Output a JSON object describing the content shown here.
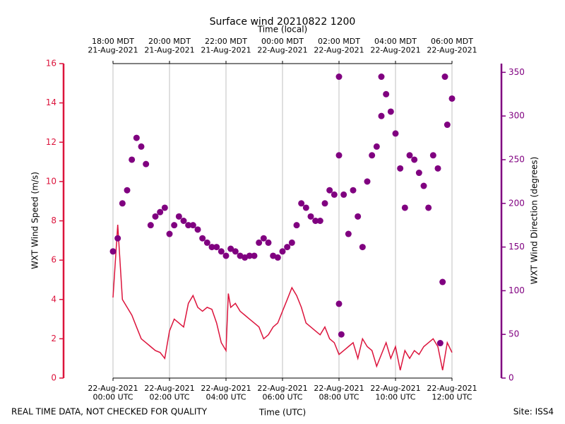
{
  "chart_data": {
    "type": "line",
    "title": "Surface wind 20210822 1200",
    "xlabel": "Time (UTC)",
    "x2label": "Time (local)",
    "ylabel": "WXT Wind Speed (m/s)",
    "y2label": "WXT Wind Direction (degrees)",
    "footer_left": "REAL TIME DATA, NOT CHECKED FOR QUALITY",
    "footer_right": "Site: ISS4",
    "grid": true,
    "xlim": [
      "2021-08-22 00:00",
      "2021-08-22 12:00"
    ],
    "xticks": [
      {
        "value": "2021-08-22 00:00",
        "label": "22-Aug-2021\n00:00 UTC"
      },
      {
        "value": "2021-08-22 02:00",
        "label": "22-Aug-2021\n02:00 UTC"
      },
      {
        "value": "2021-08-22 04:00",
        "label": "22-Aug-2021\n04:00 UTC"
      },
      {
        "value": "2021-08-22 06:00",
        "label": "22-Aug-2021\n06:00 UTC"
      },
      {
        "value": "2021-08-22 08:00",
        "label": "22-Aug-2021\n08:00 UTC"
      },
      {
        "value": "2021-08-22 10:00",
        "label": "22-Aug-2021\n10:00 UTC"
      },
      {
        "value": "2021-08-22 12:00",
        "label": "22-Aug-2021\n12:00 UTC"
      }
    ],
    "x2ticks": [
      {
        "value": "2021-08-22 00:00",
        "label": "18:00 MDT\n21-Aug-2021"
      },
      {
        "value": "2021-08-22 02:00",
        "label": "20:00 MDT\n21-Aug-2021"
      },
      {
        "value": "2021-08-22 04:00",
        "label": "22:00 MDT\n21-Aug-2021"
      },
      {
        "value": "2021-08-22 06:00",
        "label": "00:00 MDT\n22-Aug-2021"
      },
      {
        "value": "2021-08-22 08:00",
        "label": "02:00 MDT\n22-Aug-2021"
      },
      {
        "value": "2021-08-22 10:00",
        "label": "04:00 MDT\n22-Aug-2021"
      },
      {
        "value": "2021-08-22 12:00",
        "label": "06:00 MDT\n22-Aug-2021"
      }
    ],
    "ylim": [
      0,
      16
    ],
    "yticks": [
      0,
      2,
      4,
      6,
      8,
      10,
      12,
      14,
      16
    ],
    "y2lim": [
      0,
      360
    ],
    "y2ticks": [
      0,
      50,
      100,
      150,
      200,
      250,
      300,
      350
    ],
    "series": [
      {
        "type": "line",
        "color": "#dc143c",
        "x": [
          "2021-08-22 00:00",
          "2021-08-22 00:10",
          "2021-08-22 00:20",
          "2021-08-22 00:30",
          "2021-08-22 00:40",
          "2021-08-22 00:50",
          "2021-08-22 01:00",
          "2021-08-22 01:10",
          "2021-08-22 01:20",
          "2021-08-22 01:30",
          "2021-08-22 01:40",
          "2021-08-22 01:50",
          "2021-08-22 02:00",
          "2021-08-22 02:10",
          "2021-08-22 02:20",
          "2021-08-22 02:30",
          "2021-08-22 02:40",
          "2021-08-22 02:50",
          "2021-08-22 03:00",
          "2021-08-22 03:10",
          "2021-08-22 03:20",
          "2021-08-22 03:30",
          "2021-08-22 03:40",
          "2021-08-22 03:50",
          "2021-08-22 04:00",
          "2021-08-22 04:05",
          "2021-08-22 04:10",
          "2021-08-22 04:20",
          "2021-08-22 04:30",
          "2021-08-22 04:40",
          "2021-08-22 04:50",
          "2021-08-22 05:00",
          "2021-08-22 05:10",
          "2021-08-22 05:20",
          "2021-08-22 05:30",
          "2021-08-22 05:40",
          "2021-08-22 05:50",
          "2021-08-22 06:00",
          "2021-08-22 06:10",
          "2021-08-22 06:20",
          "2021-08-22 06:30",
          "2021-08-22 06:40",
          "2021-08-22 06:50",
          "2021-08-22 07:00",
          "2021-08-22 07:10",
          "2021-08-22 07:20",
          "2021-08-22 07:30",
          "2021-08-22 07:40",
          "2021-08-22 07:50",
          "2021-08-22 08:00",
          "2021-08-22 08:10",
          "2021-08-22 08:20",
          "2021-08-22 08:30",
          "2021-08-22 08:40",
          "2021-08-22 08:50",
          "2021-08-22 09:00",
          "2021-08-22 09:10",
          "2021-08-22 09:20",
          "2021-08-22 09:30",
          "2021-08-22 09:40",
          "2021-08-22 09:50",
          "2021-08-22 10:00",
          "2021-08-22 10:10",
          "2021-08-22 10:20",
          "2021-08-22 10:30",
          "2021-08-22 10:40",
          "2021-08-22 10:50",
          "2021-08-22 11:00",
          "2021-08-22 11:10",
          "2021-08-22 11:20",
          "2021-08-22 11:30",
          "2021-08-22 11:40",
          "2021-08-22 11:50",
          "2021-08-22 12:00"
        ],
        "values": [
          4.1,
          7.8,
          4.0,
          3.6,
          3.2,
          2.6,
          2.0,
          1.8,
          1.6,
          1.4,
          1.3,
          1.0,
          2.4,
          3.0,
          2.8,
          2.6,
          3.8,
          4.2,
          3.6,
          3.4,
          3.6,
          3.5,
          2.8,
          1.8,
          1.4,
          4.3,
          3.6,
          3.8,
          3.4,
          3.2,
          3.0,
          2.8,
          2.6,
          2.0,
          2.2,
          2.6,
          2.8,
          3.4,
          4.0,
          4.6,
          4.2,
          3.6,
          2.8,
          2.6,
          2.4,
          2.2,
          2.6,
          2.0,
          1.8,
          1.2,
          1.4,
          1.6,
          1.8,
          1.0,
          2.0,
          1.6,
          1.4,
          0.6,
          1.2,
          1.8,
          1.0,
          1.6,
          0.4,
          1.4,
          1.0,
          1.4,
          1.2,
          1.6,
          1.8,
          2.0,
          1.6,
          0.4,
          1.8,
          1.3
        ]
      },
      {
        "type": "scatter",
        "color": "#800080",
        "axis": "y2",
        "x": [
          "2021-08-22 00:00",
          "2021-08-22 00:10",
          "2021-08-22 00:20",
          "2021-08-22 00:30",
          "2021-08-22 00:40",
          "2021-08-22 00:50",
          "2021-08-22 01:00",
          "2021-08-22 01:10",
          "2021-08-22 01:20",
          "2021-08-22 01:30",
          "2021-08-22 01:40",
          "2021-08-22 01:50",
          "2021-08-22 02:00",
          "2021-08-22 02:10",
          "2021-08-22 02:20",
          "2021-08-22 02:30",
          "2021-08-22 02:40",
          "2021-08-22 02:50",
          "2021-08-22 03:00",
          "2021-08-22 03:10",
          "2021-08-22 03:20",
          "2021-08-22 03:30",
          "2021-08-22 03:40",
          "2021-08-22 03:50",
          "2021-08-22 04:00",
          "2021-08-22 04:10",
          "2021-08-22 04:20",
          "2021-08-22 04:30",
          "2021-08-22 04:40",
          "2021-08-22 04:50",
          "2021-08-22 05:00",
          "2021-08-22 05:10",
          "2021-08-22 05:20",
          "2021-08-22 05:30",
          "2021-08-22 05:40",
          "2021-08-22 05:50",
          "2021-08-22 06:00",
          "2021-08-22 06:10",
          "2021-08-22 06:20",
          "2021-08-22 06:30",
          "2021-08-22 06:40",
          "2021-08-22 06:50",
          "2021-08-22 07:00",
          "2021-08-22 07:10",
          "2021-08-22 07:20",
          "2021-08-22 07:30",
          "2021-08-22 07:40",
          "2021-08-22 07:50",
          "2021-08-22 08:00",
          "2021-08-22 08:00",
          "2021-08-22 08:00",
          "2021-08-22 08:05",
          "2021-08-22 08:10",
          "2021-08-22 08:20",
          "2021-08-22 08:30",
          "2021-08-22 08:40",
          "2021-08-22 08:50",
          "2021-08-22 09:00",
          "2021-08-22 09:10",
          "2021-08-22 09:20",
          "2021-08-22 09:30",
          "2021-08-22 09:30",
          "2021-08-22 09:40",
          "2021-08-22 09:50",
          "2021-08-22 10:00",
          "2021-08-22 10:10",
          "2021-08-22 10:20",
          "2021-08-22 10:30",
          "2021-08-22 10:40",
          "2021-08-22 10:50",
          "2021-08-22 11:00",
          "2021-08-22 11:10",
          "2021-08-22 11:20",
          "2021-08-22 11:30",
          "2021-08-22 11:35",
          "2021-08-22 11:40",
          "2021-08-22 11:45",
          "2021-08-22 11:50",
          "2021-08-22 12:00"
        ],
        "values": [
          145,
          160,
          200,
          215,
          250,
          275,
          265,
          245,
          175,
          185,
          190,
          195,
          165,
          175,
          185,
          180,
          175,
          175,
          170,
          160,
          155,
          150,
          150,
          145,
          140,
          148,
          145,
          140,
          138,
          140,
          140,
          155,
          160,
          155,
          140,
          138,
          145,
          150,
          155,
          175,
          200,
          195,
          185,
          180,
          180,
          200,
          215,
          210,
          255,
          345,
          85,
          50,
          210,
          165,
          215,
          185,
          150,
          225,
          255,
          265,
          300,
          345,
          325,
          305,
          280,
          240,
          195,
          255,
          250,
          235,
          220,
          195,
          255,
          240,
          40,
          110,
          345,
          290,
          320
        ]
      }
    ]
  }
}
